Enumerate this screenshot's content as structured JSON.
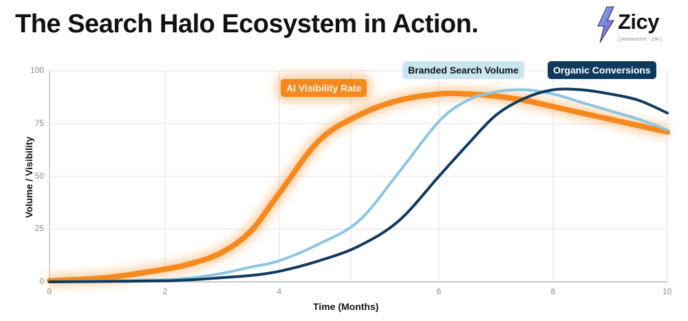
{
  "header": {
    "title": "The Search Halo Ecosystem in Action.",
    "logo_word": "Zicy",
    "logo_subtitle": "[ pronounced ~ Ziki ]"
  },
  "colors": {
    "ai_visibility": "#f5891e",
    "branded_search": "#8cc5e0",
    "organic_conversions": "#0f3a5f",
    "grid": "#e2e2e2",
    "axis": "#c8c8c8"
  },
  "chart_data": {
    "type": "line",
    "title": "The Search Halo Ecosystem in Action.",
    "xlabel": "Time (Months)",
    "ylabel": "Volume / Visibility",
    "xlim": [
      0,
      10
    ],
    "ylim": [
      0,
      100
    ],
    "x_ticks": [
      "0",
      "2",
      "4",
      "6",
      "8",
      "10"
    ],
    "y_ticks": [
      "0",
      "25",
      "50",
      "75",
      "100"
    ],
    "grid": true,
    "legend_position": "inline labels near top of plot",
    "x": [
      0,
      1,
      2,
      2.5,
      3,
      3.5,
      4,
      4.5,
      5,
      5.5,
      6,
      6.5,
      7,
      7.5,
      8,
      8.5,
      9,
      9.5,
      10
    ],
    "series": [
      {
        "name": "AI Visibility Rate",
        "values": [
          0.5,
          2,
          6,
          9,
          14,
          24,
          42,
          67,
          79,
          86,
          89,
          89,
          88,
          86,
          83,
          80,
          77,
          74,
          71
        ]
      },
      {
        "name": "Branded Search Volume",
        "values": [
          0,
          0.5,
          1,
          2,
          4,
          7,
          10,
          18,
          29,
          52,
          76,
          86,
          90,
          91,
          89,
          85,
          81,
          77,
          72
        ]
      },
      {
        "name": "Organic Conversions",
        "values": [
          0,
          0.2,
          0.5,
          1,
          2,
          3,
          5,
          10,
          17,
          29,
          50,
          65,
          79,
          87,
          91,
          91,
          89,
          86,
          80
        ]
      }
    ]
  }
}
